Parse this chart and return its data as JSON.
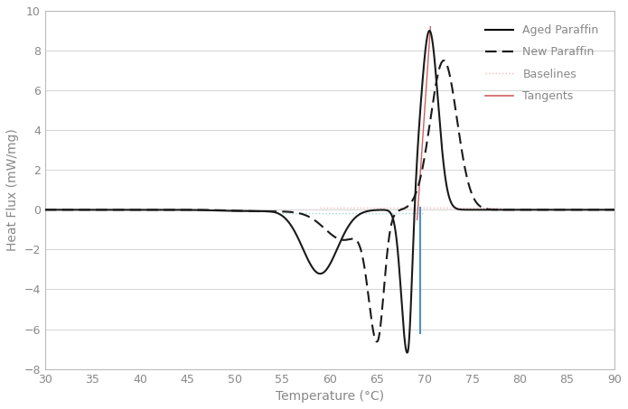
{
  "xlim": [
    30,
    90
  ],
  "ylim": [
    -8,
    10
  ],
  "xticks": [
    30,
    35,
    40,
    45,
    50,
    55,
    60,
    65,
    70,
    75,
    80,
    85,
    90
  ],
  "yticks": [
    -8,
    -6,
    -4,
    -2,
    0,
    2,
    4,
    6,
    8,
    10
  ],
  "xlabel": "Temperature (°C)",
  "ylabel": "Heat Flux (mW/mg)",
  "background_color": "#ffffff",
  "grid_color": "#d4d4d4",
  "aged_color": "#1a1a1a",
  "new_color": "#1a1a1a",
  "baseline_melt_color": "#f5b8b8",
  "baseline_solid_color": "#a8d8d8",
  "tangent_melt_color": "#d06060",
  "tangent_solid_color": "#5090c0",
  "red_tangent_x1": 69.2,
  "red_tangent_x2": 70.6,
  "red_tangent_y1": -0.5,
  "red_tangent_y2": 9.2,
  "blue_tangent_x": 69.5,
  "blue_tangent_y1": 0.1,
  "blue_tangent_y2": -6.2,
  "baseline_melt_xstart": 59,
  "baseline_melt_xend": 78,
  "baseline_melt_y": 0.12,
  "baseline_solid_xstart": 55,
  "baseline_solid_xend": 70,
  "baseline_solid_y": -0.18
}
